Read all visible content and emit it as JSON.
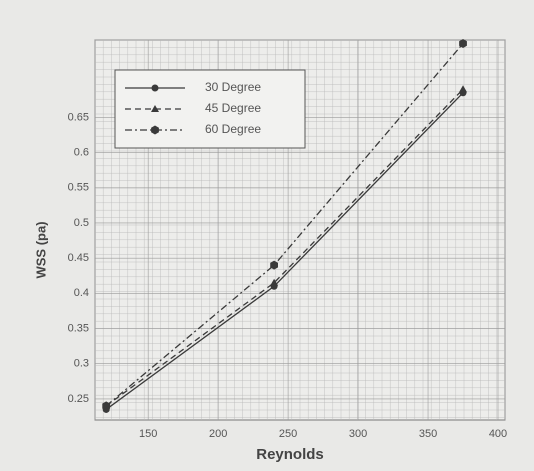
{
  "chart_data": {
    "type": "line",
    "xlabel": "Reynolds",
    "ylabel": "WSS (pa)",
    "x": [
      120,
      240,
      375
    ],
    "series": [
      {
        "name": "30 Degree",
        "color": "#3a3a3a",
        "linestyle": "solid",
        "marker": "circle",
        "values": [
          0.235,
          0.41,
          0.685
        ]
      },
      {
        "name": "45 Degree",
        "color": "#3a3a3a",
        "linestyle": "dashed",
        "marker": "triangle",
        "values": [
          0.24,
          0.415,
          0.69
        ]
      },
      {
        "name": "60 Degree",
        "color": "#3a3a3a",
        "linestyle": "dashdot",
        "marker": "hexagon",
        "values": [
          0.24,
          0.44,
          0.755
        ]
      }
    ],
    "xlim": [
      112,
      405
    ],
    "ylim": [
      0.22,
      0.76
    ],
    "xticks": [
      150,
      200,
      250,
      300,
      350,
      400
    ],
    "yticks": [
      0.25,
      0.3,
      0.35,
      0.4,
      0.45,
      0.5,
      0.55,
      0.6,
      0.65
    ],
    "grid": true,
    "legend": "upper left"
  }
}
